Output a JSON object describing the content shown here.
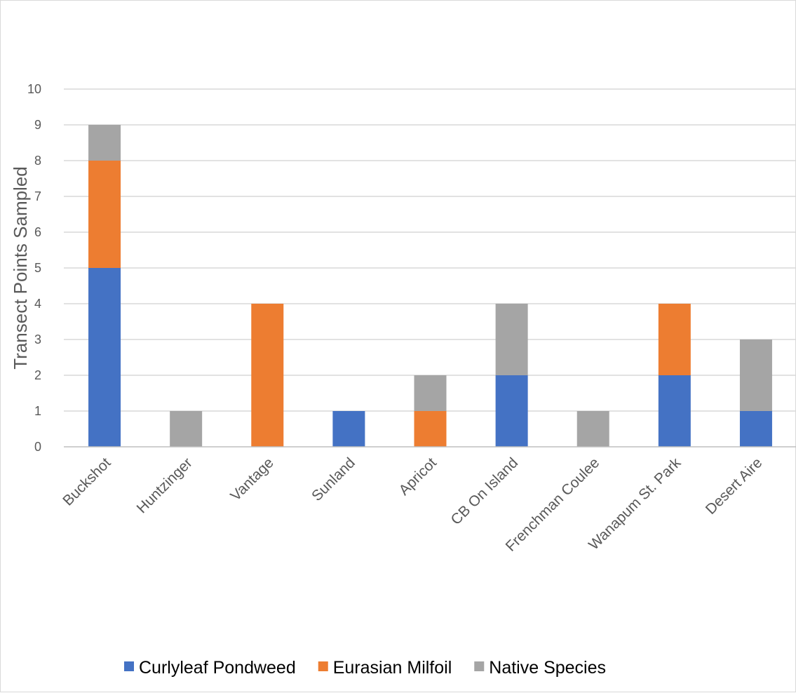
{
  "chart_data": {
    "type": "bar",
    "stacked": true,
    "title": "",
    "xlabel": "",
    "ylabel": "Transect  Points Sampled",
    "ylim": [
      0,
      10
    ],
    "yticks": [
      0,
      1,
      2,
      3,
      4,
      5,
      6,
      7,
      8,
      9,
      10
    ],
    "grid": true,
    "legend_position": "bottom",
    "categories": [
      "Buckshot",
      "Huntzinger",
      "Vantage",
      "Sunland",
      "Apricot",
      "CB On Island",
      "Frenchman Coulee",
      "Wanapum St. Park",
      "Desert Aire"
    ],
    "series": [
      {
        "name": "Curlyleaf Pondweed",
        "color": "#4472c4",
        "values": [
          5,
          0,
          0,
          1,
          0,
          2,
          0,
          2,
          1
        ]
      },
      {
        "name": "Eurasian Milfoil",
        "color": "#ed7d31",
        "values": [
          3,
          0,
          4,
          0,
          1,
          0,
          0,
          2,
          0
        ]
      },
      {
        "name": "Native Species",
        "color": "#a5a5a5",
        "values": [
          1,
          1,
          0,
          0,
          1,
          2,
          1,
          0,
          2
        ]
      }
    ],
    "colors": {
      "gridline": "#d9d9d9",
      "axis": "#bfbfbf",
      "text": "#595959"
    }
  }
}
